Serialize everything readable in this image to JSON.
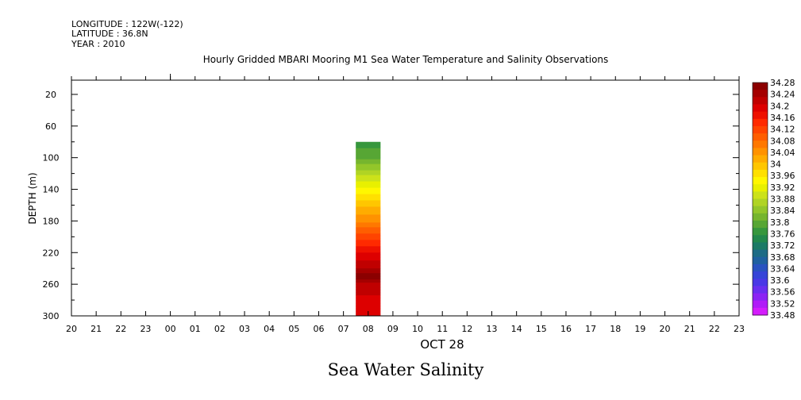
{
  "header": {
    "longitude": "LONGITUDE : 122W(-122)",
    "latitude": "LATITUDE : 36.8N",
    "year": "YEAR : 2010"
  },
  "chart_data": {
    "type": "heatmap",
    "title": "Hourly Gridded MBARI Mooring M1 Sea Water Temperature and Salinity Observations",
    "bottom_title": "Sea Water Salinity",
    "xlabel": "OCT 28",
    "ylabel": "DEPTH (m)",
    "x_tick_labels": [
      "20",
      "21",
      "22",
      "23",
      "00",
      "01",
      "02",
      "03",
      "04",
      "05",
      "06",
      "07",
      "08",
      "09",
      "10",
      "11",
      "12",
      "13",
      "14",
      "15",
      "16",
      "17",
      "18",
      "19",
      "20",
      "21",
      "22",
      "23"
    ],
    "y_tick_labels": [
      "20",
      "60",
      "100",
      "140",
      "180",
      "220",
      "260",
      "300"
    ],
    "y_ticks": [
      20,
      60,
      100,
      140,
      180,
      220,
      260,
      300
    ],
    "ylim": [
      300,
      2
    ],
    "inverted_y": true,
    "colorbar": {
      "levels": [
        "34.28",
        "34.24",
        "34.2",
        "34.16",
        "34.12",
        "34.08",
        "34.04",
        "34",
        "33.96",
        "33.92",
        "33.88",
        "33.84",
        "33.8",
        "33.76",
        "33.72",
        "33.68",
        "33.64",
        "33.6",
        "33.56",
        "33.52",
        "33.48"
      ],
      "colors": [
        "#8b0000",
        "#a50000",
        "#c00000",
        "#dd0000",
        "#ee1100",
        "#ff2a00",
        "#ff4400",
        "#ff5e00",
        "#ff7800",
        "#ff9200",
        "#ffac00",
        "#ffc600",
        "#ffe000",
        "#fff700",
        "#e8f000",
        "#cce21a",
        "#b0d424",
        "#93c62a",
        "#76b52e",
        "#57a634",
        "#36973d",
        "#22884c",
        "#1c7a66",
        "#1e6b85",
        "#2060a0",
        "#2a52c0",
        "#3644d8",
        "#4a38e6",
        "#6a2ef0",
        "#8c24f4",
        "#b01cf8",
        "#d41cfc"
      ],
      "range": [
        33.48,
        34.28
      ]
    },
    "column": {
      "time_label": "08",
      "top_depth": 80,
      "bottom_depth": 300,
      "profile": [
        {
          "depth": 82,
          "value": 33.77
        },
        {
          "depth": 100,
          "value": 33.8
        },
        {
          "depth": 120,
          "value": 33.87
        },
        {
          "depth": 140,
          "value": 33.94
        },
        {
          "depth": 160,
          "value": 34.0
        },
        {
          "depth": 180,
          "value": 34.05
        },
        {
          "depth": 200,
          "value": 34.12
        },
        {
          "depth": 220,
          "value": 34.18
        },
        {
          "depth": 240,
          "value": 34.23
        },
        {
          "depth": 250,
          "value": 34.28
        },
        {
          "depth": 260,
          "value": 34.22
        },
        {
          "depth": 280,
          "value": 34.2
        },
        {
          "depth": 300,
          "value": 34.18
        }
      ]
    }
  }
}
